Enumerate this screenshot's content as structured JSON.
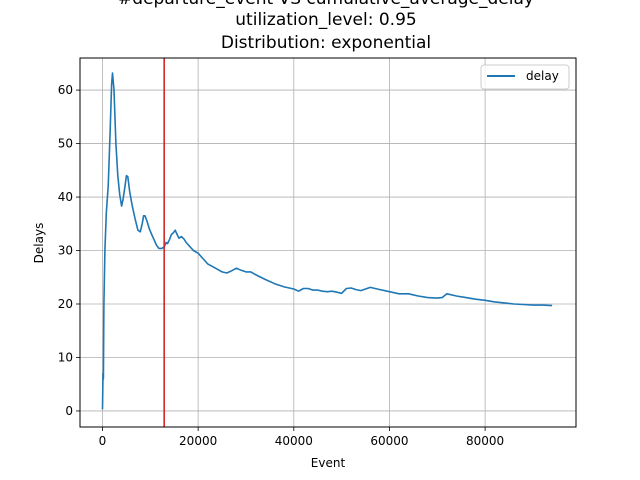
{
  "chart_data": {
    "type": "line",
    "title_lines": [
      "#departure_event VS cumulative_average_delay",
      "utilization_level: 0.95",
      "Distribution: exponential"
    ],
    "xlabel": "Event",
    "ylabel": "Delays",
    "xlim": [
      -4700,
      99000
    ],
    "ylim": [
      -3.0,
      66.0
    ],
    "xticks": [
      0,
      20000,
      40000,
      60000,
      80000
    ],
    "yticks": [
      0,
      10,
      20,
      30,
      40,
      50,
      60
    ],
    "grid": true,
    "legend_position": "top-right",
    "line_color": "#1f77b4",
    "vline": {
      "x": 12900,
      "color": "#d62728"
    },
    "series": [
      {
        "name": "delay",
        "x": [
          0,
          100,
          200,
          300,
          500,
          800,
          1200,
          1600,
          1900,
          2100,
          2400,
          2800,
          3200,
          3600,
          4000,
          4300,
          4700,
          5000,
          5300,
          5700,
          6200,
          6800,
          7400,
          7900,
          8300,
          8600,
          8900,
          9300,
          9800,
          10300,
          10800,
          11300,
          11800,
          12400,
          12900,
          13300,
          13600,
          14000,
          14400,
          14800,
          15200,
          15600,
          16000,
          16500,
          17000,
          17500,
          18000,
          19000,
          20000,
          21000,
          22000,
          23000,
          24000,
          25000,
          26000,
          27000,
          28000,
          29000,
          30000,
          31000,
          32000,
          34000,
          36000,
          38000,
          40000,
          41000,
          42000,
          43000,
          44000,
          45000,
          46000,
          47000,
          48000,
          49000,
          50000,
          51000,
          52000,
          53000,
          54000,
          55000,
          56000,
          57000,
          58000,
          60000,
          62000,
          64000,
          66000,
          68000,
          70000,
          71000,
          72000,
          74000,
          76000,
          78000,
          80000,
          82000,
          84000,
          86000,
          88000,
          90000,
          92000,
          94000
        ],
        "values": [
          0.3,
          7.0,
          6.0,
          20.0,
          30.0,
          37.0,
          42.0,
          52.0,
          61.0,
          63.2,
          60.0,
          50.0,
          44.0,
          40.5,
          38.3,
          39.5,
          42.0,
          44.0,
          43.8,
          41.0,
          38.5,
          36.0,
          33.8,
          33.5,
          35.0,
          36.5,
          36.5,
          35.5,
          34.0,
          33.0,
          32.0,
          31.0,
          30.4,
          30.4,
          30.7,
          31.5,
          31.3,
          32.0,
          33.0,
          33.3,
          33.8,
          33.0,
          32.3,
          32.6,
          32.2,
          31.5,
          31.0,
          30.0,
          29.5,
          28.5,
          27.5,
          27.0,
          26.5,
          26.0,
          25.8,
          26.2,
          26.7,
          26.3,
          26.0,
          26.0,
          25.5,
          24.6,
          23.8,
          23.2,
          22.8,
          22.4,
          22.9,
          22.9,
          22.6,
          22.6,
          22.4,
          22.3,
          22.4,
          22.2,
          22.0,
          22.9,
          23.0,
          22.7,
          22.5,
          22.8,
          23.1,
          22.9,
          22.7,
          22.3,
          21.9,
          21.9,
          21.5,
          21.2,
          21.1,
          21.2,
          21.9,
          21.5,
          21.2,
          20.9,
          20.7,
          20.4,
          20.2,
          20.0,
          19.9,
          19.8,
          19.8,
          19.7
        ]
      }
    ]
  }
}
